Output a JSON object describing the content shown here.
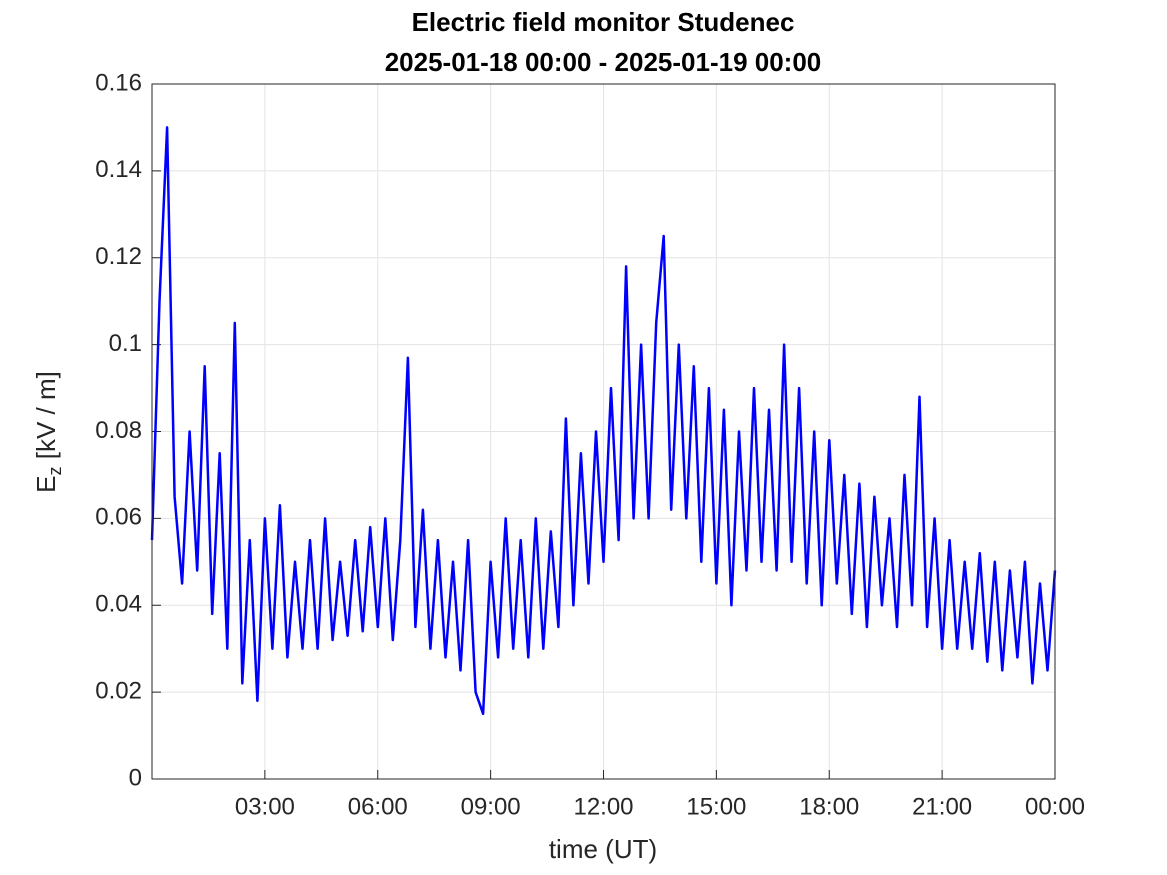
{
  "chart_data": {
    "type": "line",
    "title": "Electric field monitor Studenec",
    "subtitle": "2025-01-18 00:00 - 2025-01-19 00:00",
    "xlabel": "time (UT)",
    "ylabel": {
      "main": "E",
      "sub": "z",
      "rest": " [kV / m]"
    },
    "x": [
      0,
      0.2,
      0.4,
      0.6,
      0.8,
      1,
      1.2,
      1.4,
      1.6,
      1.8,
      2,
      2.2,
      2.4,
      2.6,
      2.8,
      3,
      3.2,
      3.4,
      3.6,
      3.8,
      4,
      4.2,
      4.4,
      4.6,
      4.8,
      5,
      5.2,
      5.4,
      5.6,
      5.8,
      6,
      6.2,
      6.4,
      6.6,
      6.8,
      7,
      7.2,
      7.4,
      7.6,
      7.8,
      8,
      8.2,
      8.4,
      8.6,
      8.8,
      9,
      9.2,
      9.4,
      9.6,
      9.8,
      10,
      10.2,
      10.4,
      10.6,
      10.8,
      11,
      11.2,
      11.4,
      11.6,
      11.8,
      12,
      12.2,
      12.4,
      12.6,
      12.8,
      13,
      13.2,
      13.4,
      13.6,
      13.8,
      14,
      14.2,
      14.4,
      14.6,
      14.8,
      15,
      15.2,
      15.4,
      15.6,
      15.8,
      16,
      16.2,
      16.4,
      16.6,
      16.8,
      17,
      17.2,
      17.4,
      17.6,
      17.8,
      18,
      18.2,
      18.4,
      18.6,
      18.8,
      19,
      19.2,
      19.4,
      19.6,
      19.8,
      20,
      20.2,
      20.4,
      20.6,
      20.8,
      21,
      21.2,
      21.4,
      21.6,
      21.8,
      22,
      22.2,
      22.4,
      22.6,
      22.8,
      23,
      23.2,
      23.4,
      23.6,
      23.8,
      24
    ],
    "series": [
      {
        "name": "Ez",
        "color": "#0000ff",
        "values": [
          0.055,
          0.11,
          0.15,
          0.065,
          0.045,
          0.08,
          0.048,
          0.095,
          0.038,
          0.075,
          0.03,
          0.105,
          0.022,
          0.055,
          0.018,
          0.06,
          0.03,
          0.063,
          0.028,
          0.05,
          0.03,
          0.055,
          0.03,
          0.06,
          0.032,
          0.05,
          0.033,
          0.055,
          0.034,
          0.058,
          0.035,
          0.06,
          0.032,
          0.055,
          0.097,
          0.035,
          0.062,
          0.03,
          0.055,
          0.028,
          0.05,
          0.025,
          0.055,
          0.02,
          0.015,
          0.05,
          0.028,
          0.06,
          0.03,
          0.055,
          0.028,
          0.06,
          0.03,
          0.057,
          0.035,
          0.083,
          0.04,
          0.075,
          0.045,
          0.08,
          0.05,
          0.09,
          0.055,
          0.118,
          0.06,
          0.1,
          0.06,
          0.105,
          0.125,
          0.062,
          0.1,
          0.06,
          0.095,
          0.05,
          0.09,
          0.045,
          0.085,
          0.04,
          0.08,
          0.048,
          0.09,
          0.05,
          0.085,
          0.048,
          0.1,
          0.05,
          0.09,
          0.045,
          0.08,
          0.04,
          0.078,
          0.045,
          0.07,
          0.038,
          0.068,
          0.035,
          0.065,
          0.04,
          0.06,
          0.035,
          0.07,
          0.04,
          0.088,
          0.035,
          0.06,
          0.03,
          0.055,
          0.03,
          0.05,
          0.03,
          0.052,
          0.027,
          0.05,
          0.025,
          0.048,
          0.028,
          0.05,
          0.022,
          0.045,
          0.025,
          0.048
        ]
      }
    ],
    "xlim": [
      0,
      24
    ],
    "xticks": [
      {
        "value": 3,
        "label": "03:00"
      },
      {
        "value": 6,
        "label": "06:00"
      },
      {
        "value": 9,
        "label": "09:00"
      },
      {
        "value": 12,
        "label": "12:00"
      },
      {
        "value": 15,
        "label": "15:00"
      },
      {
        "value": 18,
        "label": "18:00"
      },
      {
        "value": 21,
        "label": "21:00"
      },
      {
        "value": 24,
        "label": "00:00"
      }
    ],
    "ylim": [
      0,
      0.16
    ],
    "yticks": [
      0,
      0.02,
      0.04,
      0.06,
      0.08,
      0.1,
      0.12,
      0.14,
      0.16
    ],
    "grid": true
  }
}
